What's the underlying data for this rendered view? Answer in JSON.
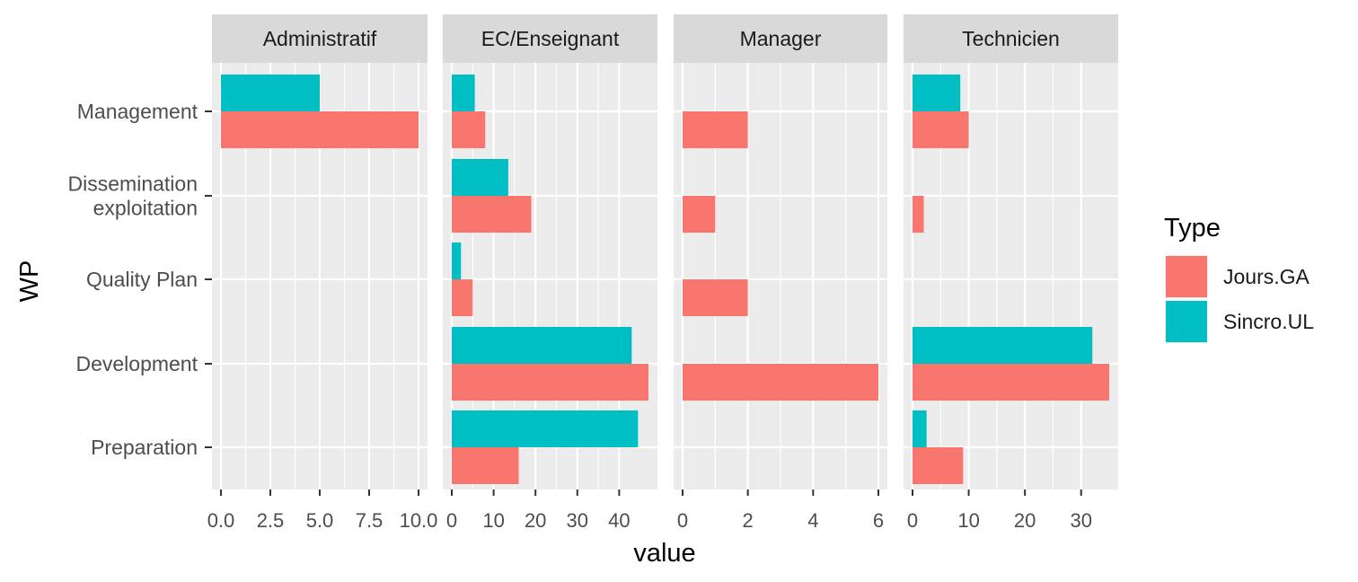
{
  "chart_data": {
    "type": "bar",
    "orientation": "horizontal",
    "faceted": true,
    "xlabel": "value",
    "ylabel": "WP",
    "grid": true,
    "legend": {
      "title": "Type",
      "placement": "right",
      "entries": [
        {
          "name": "Jours.GA",
          "color": "#F8766D"
        },
        {
          "name": "Sincro.UL",
          "color": "#00BFC4"
        }
      ]
    },
    "categories": [
      "Management",
      "Dissemination\nexploitation",
      "Quality Plan",
      "Development",
      "Preparation"
    ],
    "facets": [
      {
        "title": "Administratif",
        "xlim": [
          0,
          10
        ],
        "ticks": [
          0,
          2.5,
          5,
          7.5,
          10
        ],
        "tick_labels": [
          "0.0",
          "2.5",
          "5.0",
          "7.5",
          "10.0"
        ],
        "series": [
          {
            "name": "Jours.GA",
            "values": [
              10,
              null,
              null,
              null,
              null
            ]
          },
          {
            "name": "Sincro.UL",
            "values": [
              5,
              null,
              null,
              null,
              null
            ]
          }
        ]
      },
      {
        "title": "EC/Enseignant",
        "xlim": [
          0,
          47
        ],
        "ticks": [
          0,
          10,
          20,
          30,
          40
        ],
        "tick_labels": [
          "0",
          "10",
          "20",
          "30",
          "40"
        ],
        "series": [
          {
            "name": "Jours.GA",
            "values": [
              8,
              19,
              5,
              47,
              16
            ]
          },
          {
            "name": "Sincro.UL",
            "values": [
              5.5,
              13.5,
              2.2,
              43,
              44.5
            ]
          }
        ]
      },
      {
        "title": "Manager",
        "xlim": [
          0,
          6
        ],
        "ticks": [
          0,
          2,
          4,
          6
        ],
        "tick_labels": [
          "0",
          "2",
          "4",
          "6"
        ],
        "series": [
          {
            "name": "Jours.GA",
            "values": [
              2,
              1,
              2,
              6,
              null
            ]
          },
          {
            "name": "Sincro.UL",
            "values": [
              null,
              null,
              null,
              null,
              null
            ]
          }
        ]
      },
      {
        "title": "Technicien",
        "xlim": [
          0,
          35
        ],
        "ticks": [
          0,
          10,
          20,
          30
        ],
        "tick_labels": [
          "0",
          "10",
          "20",
          "30"
        ],
        "series": [
          {
            "name": "Jours.GA",
            "values": [
              10,
              2,
              null,
              35,
              9
            ]
          },
          {
            "name": "Sincro.UL",
            "values": [
              8.5,
              null,
              null,
              32,
              2.5
            ]
          }
        ]
      }
    ]
  }
}
